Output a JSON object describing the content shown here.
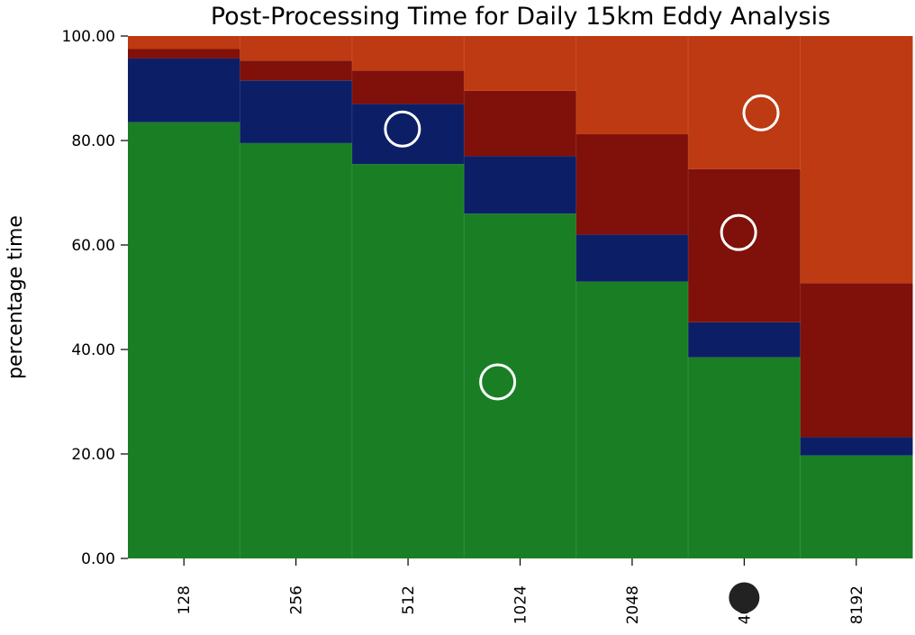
{
  "chart_data": {
    "type": "bar",
    "stacked": true,
    "title": "Post-Processing Time for Daily 15km Eddy Analysis",
    "xlabel": "",
    "ylabel": "percentage time",
    "categories": [
      "128",
      "256",
      "512",
      "1024",
      "2048",
      "4096",
      "8192"
    ],
    "ylim": [
      0,
      100
    ],
    "yticks": [
      "0.00",
      "20.00",
      "40.00",
      "60.00",
      "80.00",
      "100.00"
    ],
    "grid": false,
    "series": [
      {
        "color": "#1a7f24",
        "values": [
          83.5,
          79.5,
          75.5,
          66.0,
          53.0,
          38.5,
          19.7
        ]
      },
      {
        "color": "#0c1f66",
        "values": [
          12.2,
          12.0,
          11.5,
          11.0,
          9.0,
          6.7,
          3.5
        ]
      },
      {
        "color": "#7f100a",
        "values": [
          1.8,
          3.8,
          6.4,
          12.5,
          19.2,
          29.3,
          29.5
        ]
      },
      {
        "color": "#bd3a12",
        "values": [
          2.5,
          4.7,
          6.6,
          10.5,
          18.8,
          25.5,
          47.3
        ]
      }
    ],
    "markers": [
      {
        "category_index": 1.95,
        "value": 82.2,
        "style": "ring"
      },
      {
        "category_index": 2.8,
        "value": 33.8,
        "style": "ring"
      },
      {
        "category_index": 4.95,
        "value": 62.4,
        "style": "ring"
      },
      {
        "category_index": 5.15,
        "value": 85.3,
        "style": "ring"
      },
      {
        "category_index": 5.0,
        "value": -7.5,
        "style": "dot"
      }
    ]
  }
}
